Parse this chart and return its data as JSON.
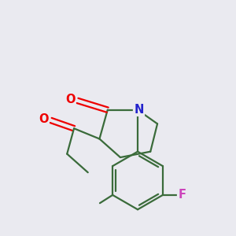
{
  "background_color": "#eaeaf0",
  "bond_color": "#3a6b3a",
  "atom_colors": {
    "O": "#ee0000",
    "N": "#2222cc",
    "F": "#cc44bb",
    "C": "#3a6b3a"
  },
  "figsize": [
    3.0,
    3.0
  ],
  "dpi": 100,
  "lw": 1.6,
  "fontsize": 10.5
}
